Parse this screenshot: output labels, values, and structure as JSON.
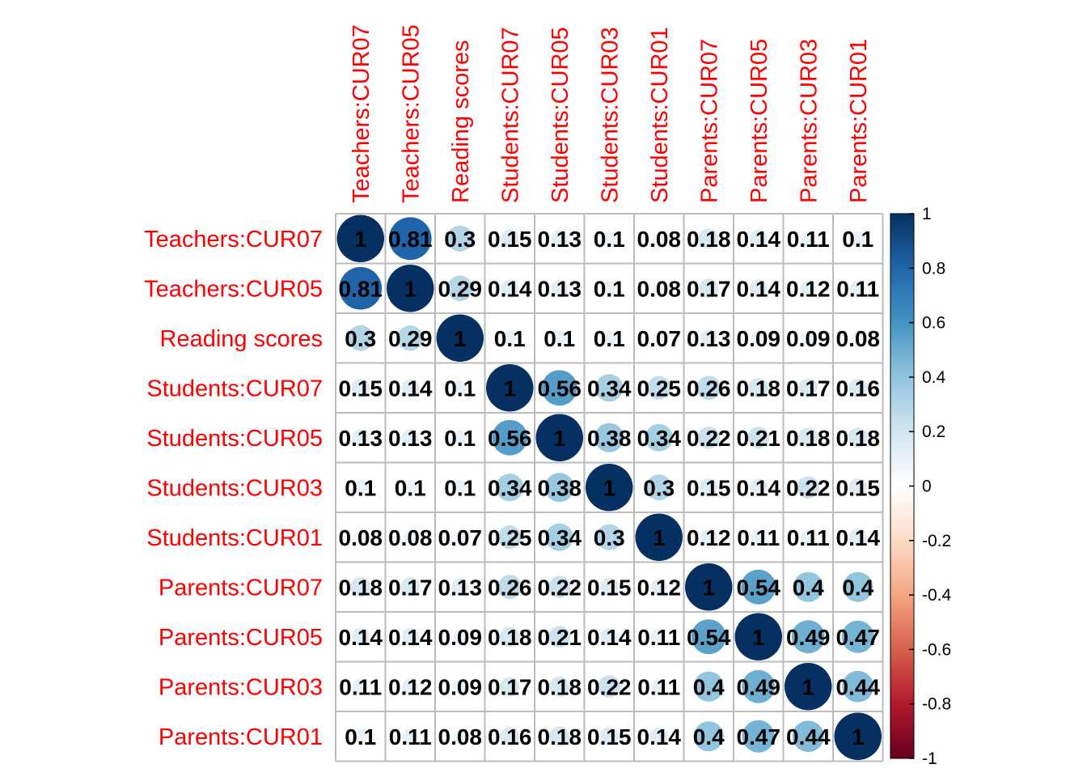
{
  "chart_data": {
    "type": "heatmap",
    "method": "circle",
    "labels": [
      "Teachers:CUR07",
      "Teachers:CUR05",
      "Reading scores",
      "Students:CUR07",
      "Students:CUR05",
      "Students:CUR03",
      "Students:CUR01",
      "Parents:CUR07",
      "Parents:CUR05",
      "Parents:CUR03",
      "Parents:CUR01"
    ],
    "matrix": [
      [
        1,
        0.81,
        0.3,
        0.15,
        0.13,
        0.1,
        0.08,
        0.18,
        0.14,
        0.11,
        0.1
      ],
      [
        0.81,
        1,
        0.29,
        0.14,
        0.13,
        0.1,
        0.08,
        0.17,
        0.14,
        0.12,
        0.11
      ],
      [
        0.3,
        0.29,
        1,
        0.1,
        0.1,
        0.1,
        0.07,
        0.13,
        0.09,
        0.09,
        0.08
      ],
      [
        0.15,
        0.14,
        0.1,
        1,
        0.56,
        0.34,
        0.25,
        0.26,
        0.18,
        0.17,
        0.16
      ],
      [
        0.13,
        0.13,
        0.1,
        0.56,
        1,
        0.38,
        0.34,
        0.22,
        0.21,
        0.18,
        0.18
      ],
      [
        0.1,
        0.1,
        0.1,
        0.34,
        0.38,
        1,
        0.3,
        0.15,
        0.14,
        0.22,
        0.15
      ],
      [
        0.08,
        0.08,
        0.07,
        0.25,
        0.34,
        0.3,
        1,
        0.12,
        0.11,
        0.11,
        0.14
      ],
      [
        0.18,
        0.17,
        0.13,
        0.26,
        0.22,
        0.15,
        0.12,
        1,
        0.54,
        0.4,
        0.4
      ],
      [
        0.14,
        0.14,
        0.09,
        0.18,
        0.21,
        0.14,
        0.11,
        0.54,
        1,
        0.49,
        0.47
      ],
      [
        0.11,
        0.12,
        0.09,
        0.17,
        0.18,
        0.22,
        0.11,
        0.4,
        0.49,
        1,
        0.44
      ],
      [
        0.1,
        0.11,
        0.08,
        0.16,
        0.18,
        0.15,
        0.14,
        0.4,
        0.47,
        0.44,
        1
      ]
    ],
    "colorbar": {
      "range": [
        -1,
        1
      ],
      "ticks": [
        "1",
        "0.8",
        "0.6",
        "0.4",
        "0.2",
        "0",
        "-0.2",
        "-0.4",
        "-0.6",
        "-0.8",
        "-1"
      ]
    },
    "colors": {
      "label": "#ff0000",
      "grid": "#bbbbbb",
      "scale": [
        "#67001f",
        "#b2182b",
        "#d6604d",
        "#f4a582",
        "#fddbc7",
        "#ffffff",
        "#d1e5f0",
        "#92c5de",
        "#4393c3",
        "#2166ac",
        "#053061"
      ]
    }
  }
}
